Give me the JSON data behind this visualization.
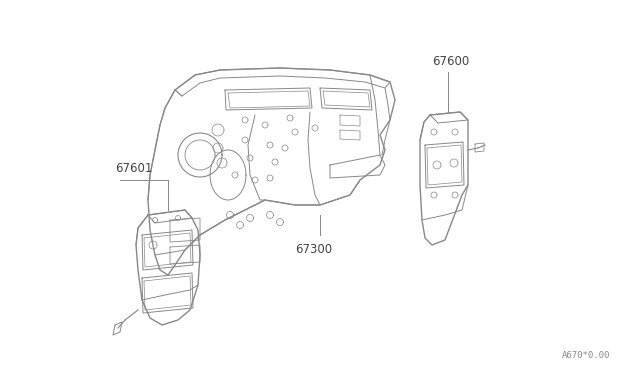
{
  "background_color": "#ffffff",
  "diagram_code": "A670*0.00",
  "line_color": "#888888",
  "text_color": "#444444",
  "figsize": [
    6.4,
    3.72
  ],
  "dpi": 100
}
